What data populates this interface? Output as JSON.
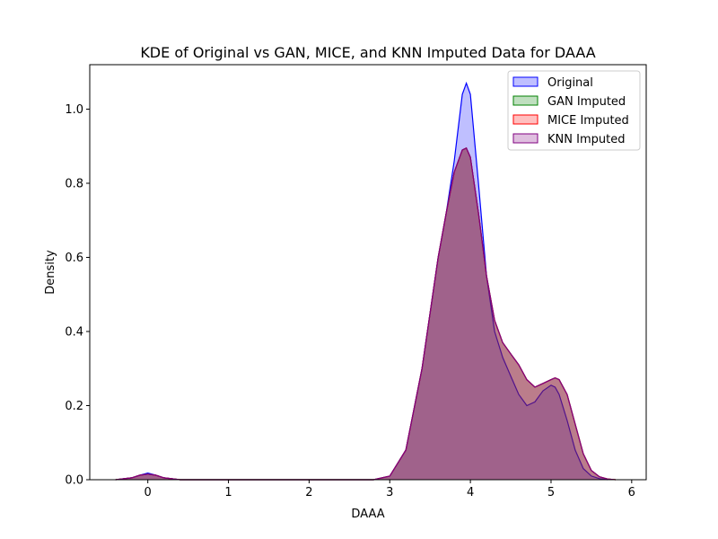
{
  "chart_data": {
    "type": "area",
    "title": "KDE of Original vs GAN, MICE, and KNN Imputed Data for DAAA",
    "xlabel": "DAAA",
    "ylabel": "Density",
    "xlim": [
      -0.72,
      6.18
    ],
    "ylim": [
      0,
      1.12
    ],
    "xticks": [
      0,
      1,
      2,
      3,
      4,
      5,
      6
    ],
    "yticks": [
      0.0,
      0.2,
      0.4,
      0.6,
      0.8,
      1.0
    ],
    "xtick_labels": [
      "0",
      "1",
      "2",
      "3",
      "4",
      "5",
      "6"
    ],
    "ytick_labels": [
      "0.0",
      "0.2",
      "0.4",
      "0.6",
      "0.8",
      "1.0"
    ],
    "grid": false,
    "legend_position": "upper right",
    "series": [
      {
        "name": "Original",
        "color": "#0000ff",
        "x": [
          -0.4,
          -0.2,
          -0.1,
          0.0,
          0.1,
          0.2,
          0.4,
          1.0,
          2.0,
          2.8,
          3.0,
          3.2,
          3.4,
          3.5,
          3.6,
          3.7,
          3.8,
          3.9,
          3.95,
          4.0,
          4.1,
          4.2,
          4.3,
          4.4,
          4.5,
          4.6,
          4.7,
          4.8,
          4.9,
          5.0,
          5.05,
          5.1,
          5.2,
          5.3,
          5.4,
          5.5,
          5.6,
          5.7
        ],
        "y": [
          0.0,
          0.005,
          0.012,
          0.018,
          0.012,
          0.005,
          0.0,
          0.0,
          0.0,
          0.0,
          0.01,
          0.08,
          0.3,
          0.45,
          0.6,
          0.72,
          0.86,
          1.04,
          1.07,
          1.04,
          0.8,
          0.55,
          0.4,
          0.33,
          0.28,
          0.23,
          0.2,
          0.21,
          0.24,
          0.255,
          0.25,
          0.23,
          0.16,
          0.08,
          0.03,
          0.01,
          0.003,
          0.0
        ]
      },
      {
        "name": "GAN Imputed",
        "color": "#008000",
        "x": [
          -0.4,
          -0.2,
          -0.1,
          0.0,
          0.1,
          0.2,
          0.4,
          1.0,
          2.0,
          2.8,
          3.0,
          3.2,
          3.4,
          3.5,
          3.6,
          3.7,
          3.8,
          3.9,
          3.95,
          4.0,
          4.1,
          4.2,
          4.3,
          4.4,
          4.5,
          4.6,
          4.7,
          4.8,
          4.9,
          5.0,
          5.05,
          5.1,
          5.2,
          5.3,
          5.4,
          5.5,
          5.6,
          5.7,
          5.8
        ],
        "y": [
          0.0,
          0.005,
          0.012,
          0.015,
          0.012,
          0.005,
          0.0,
          0.0,
          0.0,
          0.0,
          0.01,
          0.08,
          0.3,
          0.45,
          0.6,
          0.72,
          0.83,
          0.89,
          0.895,
          0.87,
          0.72,
          0.55,
          0.43,
          0.37,
          0.34,
          0.31,
          0.27,
          0.25,
          0.26,
          0.27,
          0.275,
          0.27,
          0.23,
          0.15,
          0.07,
          0.025,
          0.008,
          0.002,
          0.0
        ]
      },
      {
        "name": "MICE Imputed",
        "color": "#ff0000",
        "x": [
          -0.4,
          -0.2,
          -0.1,
          0.0,
          0.1,
          0.2,
          0.4,
          1.0,
          2.0,
          2.8,
          3.0,
          3.2,
          3.4,
          3.5,
          3.6,
          3.7,
          3.8,
          3.9,
          3.95,
          4.0,
          4.1,
          4.2,
          4.3,
          4.4,
          4.5,
          4.6,
          4.7,
          4.8,
          4.9,
          5.0,
          5.05,
          5.1,
          5.2,
          5.3,
          5.4,
          5.5,
          5.6,
          5.7,
          5.8
        ],
        "y": [
          0.0,
          0.005,
          0.012,
          0.015,
          0.012,
          0.005,
          0.0,
          0.0,
          0.0,
          0.0,
          0.01,
          0.08,
          0.3,
          0.45,
          0.6,
          0.72,
          0.83,
          0.89,
          0.895,
          0.87,
          0.72,
          0.55,
          0.43,
          0.37,
          0.34,
          0.31,
          0.27,
          0.25,
          0.26,
          0.27,
          0.275,
          0.27,
          0.23,
          0.15,
          0.07,
          0.025,
          0.008,
          0.002,
          0.0
        ]
      },
      {
        "name": "KNN Imputed",
        "color": "#800080",
        "x": [
          -0.4,
          -0.2,
          -0.1,
          0.0,
          0.1,
          0.2,
          0.4,
          1.0,
          2.0,
          2.8,
          3.0,
          3.2,
          3.4,
          3.5,
          3.6,
          3.7,
          3.8,
          3.9,
          3.95,
          4.0,
          4.1,
          4.2,
          4.3,
          4.4,
          4.5,
          4.6,
          4.7,
          4.8,
          4.9,
          5.0,
          5.05,
          5.1,
          5.2,
          5.3,
          5.4,
          5.5,
          5.6,
          5.7,
          5.8
        ],
        "y": [
          0.0,
          0.005,
          0.012,
          0.015,
          0.012,
          0.005,
          0.0,
          0.0,
          0.0,
          0.0,
          0.01,
          0.08,
          0.3,
          0.45,
          0.6,
          0.72,
          0.83,
          0.89,
          0.895,
          0.87,
          0.72,
          0.55,
          0.43,
          0.37,
          0.34,
          0.31,
          0.27,
          0.25,
          0.26,
          0.27,
          0.275,
          0.27,
          0.23,
          0.15,
          0.07,
          0.025,
          0.008,
          0.002,
          0.0
        ]
      }
    ]
  }
}
